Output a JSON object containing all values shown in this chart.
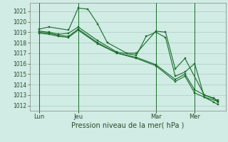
{
  "title": "Pression niveau de la mer( hPa )",
  "bg_color": "#d0ece4",
  "grid_color": "#aaccc0",
  "line_color": "#1a6b2a",
  "ylim": [
    1011.5,
    1021.8
  ],
  "yticks": [
    1012,
    1013,
    1014,
    1015,
    1016,
    1017,
    1018,
    1019,
    1020,
    1021
  ],
  "x_day_labels": [
    {
      "label": "Lun",
      "x": 0
    },
    {
      "label": "Jeu",
      "x": 2
    },
    {
      "label": "Mar",
      "x": 6
    },
    {
      "label": "Mer",
      "x": 8
    }
  ],
  "x_day_vlines": [
    0,
    2,
    6,
    8
  ],
  "series": [
    {
      "x": [
        0,
        0.5,
        1.5,
        2.0,
        2.5,
        3.0,
        3.5,
        4.5,
        5.0,
        6.0,
        6.5,
        7.0,
        7.5,
        8.5,
        9.2
      ],
      "y": [
        1019.3,
        1019.5,
        1019.2,
        1021.3,
        1021.2,
        1019.8,
        1018.0,
        1017.0,
        1017.0,
        1019.1,
        1019.0,
        1015.5,
        1016.5,
        1013.0,
        1012.5
      ]
    },
    {
      "x": [
        0,
        0.5,
        1.0,
        1.5,
        2.0,
        3.0,
        4.0,
        5.0,
        5.5,
        6.0,
        6.5,
        7.0,
        7.5,
        8.0,
        8.5,
        9.2
      ],
      "y": [
        1019.1,
        1019.0,
        1018.8,
        1018.9,
        1019.5,
        1018.2,
        1017.1,
        1016.8,
        1018.6,
        1019.0,
        1018.5,
        1014.8,
        1015.2,
        1016.0,
        1012.8,
        1012.4
      ]
    },
    {
      "x": [
        0,
        0.5,
        1.0,
        1.5,
        2.0,
        3.0,
        4.0,
        5.0,
        6.0,
        7.0,
        7.5,
        8.0,
        8.5,
        9.0,
        9.2
      ],
      "y": [
        1019.0,
        1018.9,
        1018.7,
        1018.6,
        1019.3,
        1018.0,
        1017.0,
        1016.6,
        1015.9,
        1014.5,
        1015.0,
        1013.5,
        1013.0,
        1012.7,
        1012.3
      ]
    },
    {
      "x": [
        0,
        0.5,
        1.0,
        1.5,
        2.0,
        3.0,
        4.0,
        5.0,
        6.0,
        7.0,
        7.5,
        8.0,
        8.5,
        9.0,
        9.2
      ],
      "y": [
        1018.9,
        1018.8,
        1018.6,
        1018.5,
        1019.2,
        1017.9,
        1017.0,
        1016.5,
        1015.8,
        1014.3,
        1014.8,
        1013.2,
        1012.8,
        1012.3,
        1012.1
      ]
    }
  ],
  "xlim": [
    -0.5,
    9.6
  ],
  "figsize": [
    3.2,
    2.0
  ],
  "dpi": 100
}
